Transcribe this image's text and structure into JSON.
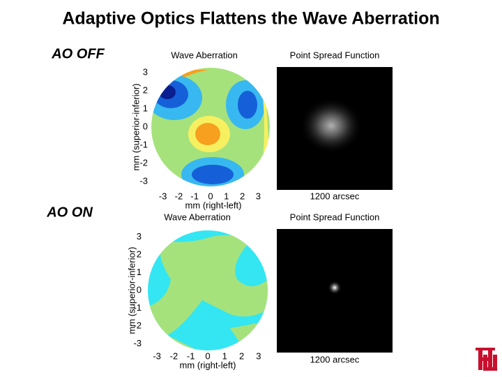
{
  "title": "Adaptive Optics Flattens the Wave Aberration",
  "panels": [
    {
      "label": "AO OFF",
      "wave": {
        "title": "Wave Aberration",
        "xlabel": "mm (right-left)",
        "ylabel": "mm (superior-inferior)",
        "xticks": [
          -3,
          -2,
          -1,
          0,
          1,
          2,
          3
        ],
        "yticks": [
          3,
          2,
          1,
          0,
          -1,
          -2,
          -3
        ]
      },
      "psf": {
        "title": "Point Spread Function",
        "scale": "1200 arcsec"
      }
    },
    {
      "label": "AO ON",
      "wave": {
        "title": "Wave Aberration",
        "xlabel": "mm (right-left)",
        "ylabel": "mm (superior-inferior)",
        "xticks": [
          -3,
          -2,
          -1,
          0,
          1,
          2,
          3
        ],
        "yticks": [
          3,
          2,
          1,
          0,
          -1,
          -2,
          -3
        ]
      },
      "psf": {
        "title": "Point Spread Function",
        "scale": "1200 arcsec"
      }
    }
  ]
}
